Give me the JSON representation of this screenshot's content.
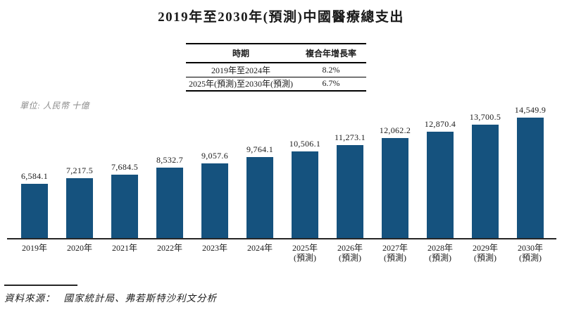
{
  "title": "2019年至2030年(預測)中國醫療總支出",
  "cagr_table": {
    "headers": [
      "時期",
      "複合年增長率"
    ],
    "rows": [
      {
        "period": "2019年至2024年",
        "cagr": "8.2%"
      },
      {
        "period": "2025年(預測)至2030年(預測)",
        "cagr": "6.7%"
      }
    ]
  },
  "unit_label": "單位: 人民幣 十億",
  "chart_data": {
    "type": "bar",
    "title": "2019年至2030年(預測)中國醫療總支出",
    "ylabel": "人民幣 十億",
    "xlabel": "",
    "categories": [
      "2019年",
      "2020年",
      "2021年",
      "2022年",
      "2023年",
      "2024年",
      "2025年",
      "2026年",
      "2027年",
      "2028年",
      "2029年",
      "2030年"
    ],
    "category_sublabels": [
      "",
      "",
      "",
      "",
      "",
      "",
      "(預測)",
      "(預測)",
      "(預測)",
      "(預測)",
      "(預測)",
      "(預測)"
    ],
    "values": [
      6584.1,
      7217.5,
      7684.5,
      8532.7,
      9057.6,
      9764.1,
      10506.1,
      11273.1,
      12062.2,
      12870.4,
      13700.5,
      14549.9
    ],
    "value_labels": [
      "6,584.1",
      "7,217.5",
      "7,684.5",
      "8,532.7",
      "9,057.6",
      "9,764.1",
      "10,506.1",
      "11,273.1",
      "12,062.2",
      "12,870.4",
      "13,700.5",
      "14,549.9"
    ],
    "ylim": [
      0,
      14549.9
    ],
    "grid": false,
    "legend": false,
    "bar_color": "#15527E",
    "axis_color": "#262626"
  },
  "source": {
    "label": "資料來源：",
    "text": "國家統計局、弗若斯特沙利文分析"
  }
}
